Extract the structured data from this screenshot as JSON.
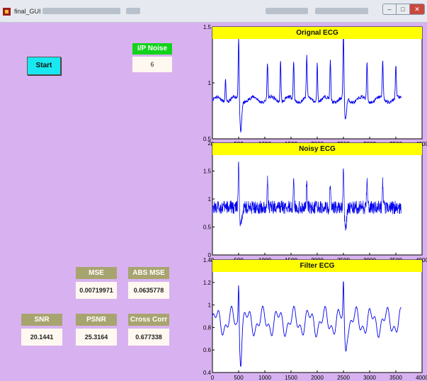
{
  "window": {
    "title": "final_GUI",
    "controls": {
      "minimize": "–",
      "maximize": "□",
      "close": "✕"
    }
  },
  "controls": {
    "start_label": "Start",
    "ip_noise_label": "I/P Noise",
    "ip_noise_value": "6"
  },
  "metrics": {
    "mse": {
      "label": "MSE",
      "value": "0.00719971"
    },
    "abs_mse": {
      "label": "ABS MSE",
      "value": "0.0635778"
    },
    "snr": {
      "label": "SNR",
      "value": "20.1441"
    },
    "psnr": {
      "label": "PSNR",
      "value": "25.3164"
    },
    "cross_corr": {
      "label": "Cross Corr",
      "value": "0.677338"
    }
  },
  "colors": {
    "background": "#d8b2f0",
    "title_bar": "#ffff00",
    "signal": "#0000ee",
    "start_button": "#19e8f0",
    "noise_label": "#12d21c",
    "metric_label": "#a8a470"
  },
  "chart_data": [
    {
      "type": "line",
      "title": "Orignal ECG",
      "xlim": [
        0,
        4000
      ],
      "ylim": [
        0.5,
        1.5
      ],
      "xticks": [
        0,
        500,
        1000,
        1500,
        2000,
        2500,
        3000,
        3500,
        4000
      ],
      "yticks": [
        0.5,
        1,
        1.5
      ],
      "ytick_labels": [
        "0.5",
        "1",
        "1.5"
      ],
      "series": [
        {
          "signal_length": 3600,
          "baseline": 0.85,
          "beat_peaks": [
            {
              "x": 250,
              "peak": 1.05
            },
            {
              "x": 500,
              "peak": 1.42,
              "dip": 0.57
            },
            {
              "x": 1050,
              "peak": 1.18
            },
            {
              "x": 1300,
              "peak": 1.22
            },
            {
              "x": 1550,
              "peak": 1.2
            },
            {
              "x": 1800,
              "peak": 1.22
            },
            {
              "x": 2000,
              "peak": 1.2
            },
            {
              "x": 2250,
              "peak": 1.2
            },
            {
              "x": 2500,
              "peak": 1.45,
              "dip": 0.65
            },
            {
              "x": 2950,
              "peak": 1.2
            },
            {
              "x": 3250,
              "peak": 1.2
            },
            {
              "x": 3500,
              "peak": 1.15
            }
          ]
        }
      ]
    },
    {
      "type": "line",
      "title": "Noisy ECG",
      "xlim": [
        0,
        4000
      ],
      "ylim": [
        0,
        2
      ],
      "xticks": [
        0,
        500,
        1000,
        1500,
        2000,
        2500,
        3000,
        3500,
        4000
      ],
      "yticks": [
        0,
        0.5,
        1,
        1.5,
        2
      ],
      "ytick_labels": [
        "0",
        "0.5",
        "1",
        "1.5",
        "2"
      ],
      "series": [
        {
          "signal_length": 3600,
          "baseline": 0.85,
          "noise_amplitude": 0.12,
          "beat_peaks": [
            {
              "x": 500,
              "peak": 1.65,
              "dip": 0.5
            },
            {
              "x": 1050,
              "peak": 1.35
            },
            {
              "x": 1550,
              "peak": 1.35
            },
            {
              "x": 1800,
              "peak": 1.3
            },
            {
              "x": 2250,
              "peak": 1.3
            },
            {
              "x": 2500,
              "peak": 1.6,
              "dip": 0.45
            },
            {
              "x": 2950,
              "peak": 1.35
            },
            {
              "x": 3250,
              "peak": 1.3
            }
          ]
        }
      ]
    },
    {
      "type": "line",
      "title": "Filter ECG",
      "xlim": [
        0,
        4000
      ],
      "ylim": [
        0.4,
        1.4
      ],
      "xticks": [
        0,
        500,
        1000,
        1500,
        2000,
        2500,
        3000,
        3500,
        4000
      ],
      "yticks": [
        0.4,
        0.6,
        0.8,
        1,
        1.2,
        1.4
      ],
      "ytick_labels": [
        "0.4",
        "0.6",
        "0.8",
        "1",
        "1.2",
        "1.4"
      ],
      "series": [
        {
          "signal_length": 3600,
          "baseline": 0.85,
          "beat_peaks": [
            {
              "x": 500,
              "peak": 1.25,
              "dip": 0.58
            },
            {
              "x": 2500,
              "peak": 1.18,
              "dip": 0.65
            }
          ]
        }
      ]
    }
  ]
}
